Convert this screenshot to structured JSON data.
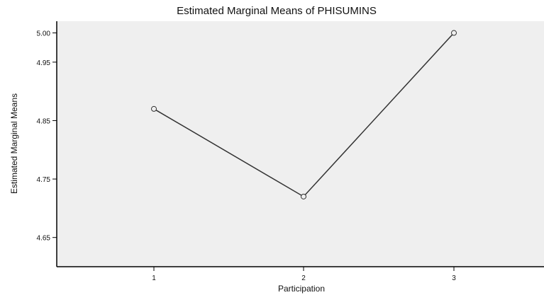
{
  "chart_data": {
    "type": "line",
    "title": "Estimated Marginal Means of PHISUMINS",
    "xlabel": "Participation",
    "ylabel": "Estimated Marginal Means",
    "categories": [
      "1",
      "2",
      "3"
    ],
    "series": [
      {
        "values": [
          4.87,
          4.72,
          5.0
        ]
      }
    ],
    "ylim": [
      4.6,
      5.02
    ],
    "yticks": [
      4.65,
      4.75,
      4.85,
      4.95,
      5.0
    ],
    "ytick_labels": [
      "4.65",
      "4.75",
      "4.85",
      "4.95",
      "5.00"
    ],
    "grid": false,
    "legend": "none",
    "colors": {
      "plot_background": "#efefef",
      "line": "#333333",
      "axis": "#000000"
    }
  }
}
